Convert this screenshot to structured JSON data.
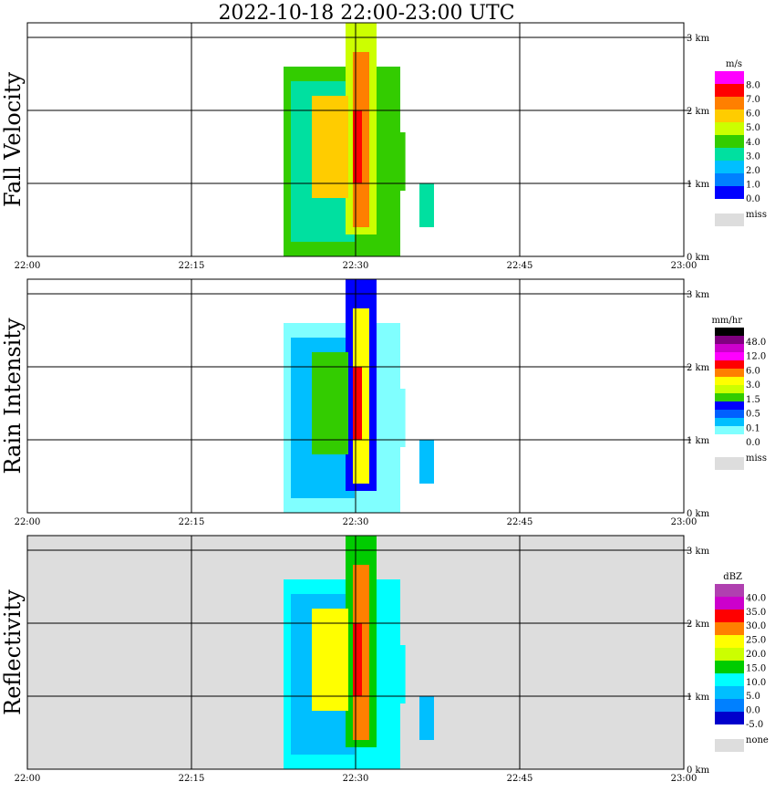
{
  "title": "2022-10-18   22:00-23:00 UTC",
  "chart_data": [
    {
      "type": "heatmap",
      "ylabel": "Fall Velocity",
      "x_ticks": [
        "22:00",
        "22:15",
        "22:30",
        "22:45",
        "23:00"
      ],
      "y_ticks": [
        "0 km",
        "1 km",
        "2 km",
        "3 km"
      ],
      "xlim": [
        "22:00",
        "23:00"
      ],
      "ylim": [
        0,
        3.2
      ],
      "colorbar": {
        "unit": "m/s",
        "labels": [
          "8.0",
          "7.0",
          "6.0",
          "5.0",
          "4.0",
          "3.0",
          "2.0",
          "1.0",
          "0.0"
        ],
        "colors": [
          "#ff00ff",
          "#ff0000",
          "#ff7f00",
          "#ffcc00",
          "#ccff00",
          "#33cc00",
          "#00e0a0",
          "#00bfff",
          "#0080ff",
          "#0000ff"
        ],
        "miss_label": "miss",
        "miss_color": "#dddddd"
      }
    },
    {
      "type": "heatmap",
      "ylabel": "Rain Intensity",
      "x_ticks": [
        "22:00",
        "22:15",
        "22:30",
        "22:45",
        "23:00"
      ],
      "y_ticks": [
        "0 km",
        "1 km",
        "2 km",
        "3 km"
      ],
      "xlim": [
        "22:00",
        "23:00"
      ],
      "ylim": [
        0,
        3.2
      ],
      "colorbar": {
        "unit": "mm/hr",
        "labels": [
          "48.0",
          "12.0",
          "6.0",
          "3.0",
          "1.5",
          "0.5",
          "0.1",
          "0.0"
        ],
        "colors": [
          "#000000",
          "#800080",
          "#cc00cc",
          "#ff00ff",
          "#ff0000",
          "#ff8000",
          "#ffff00",
          "#ccff00",
          "#33cc00",
          "#0000ff",
          "#0060ff",
          "#00bfff",
          "#80ffff",
          "#ffffff"
        ],
        "miss_label": "miss",
        "miss_color": "#dddddd"
      }
    },
    {
      "type": "heatmap",
      "ylabel": "Reflectivity",
      "x_ticks": [
        "22:00",
        "22:15",
        "22:30",
        "22:45",
        "23:00"
      ],
      "y_ticks": [
        "0 km",
        "1 km",
        "2 km",
        "3 km"
      ],
      "xlim": [
        "22:00",
        "23:00"
      ],
      "ylim": [
        0,
        3.2
      ],
      "colorbar": {
        "unit": "dBZ",
        "labels": [
          "40.0",
          "35.0",
          "30.0",
          "25.0",
          "20.0",
          "15.0",
          "10.0",
          "5.0",
          "0.0",
          "-5.0"
        ],
        "colors": [
          "#b040b0",
          "#cc00cc",
          "#ff0000",
          "#ff8000",
          "#ffff00",
          "#ccff00",
          "#00cc00",
          "#00ffff",
          "#00bfff",
          "#0080ff",
          "#0000cc"
        ],
        "miss_label": "none",
        "miss_color": "#dddddd"
      }
    }
  ]
}
